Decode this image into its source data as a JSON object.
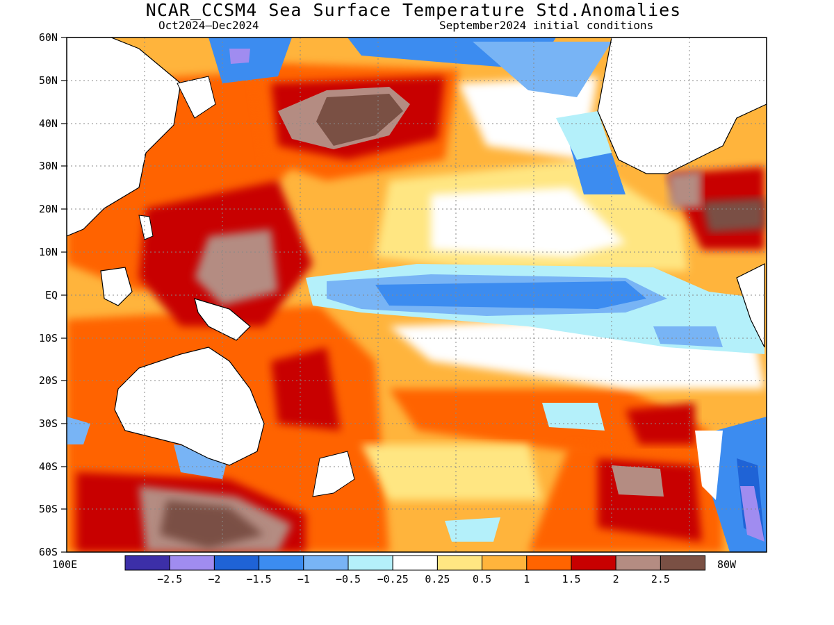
{
  "title": "NCAR_CCSM4 Sea Surface Temperature Std.Anomalies",
  "subtitle_left": "Oct2024–Dec2024",
  "subtitle_right": "September2024 initial conditions",
  "lat_labels": [
    "60N",
    "50N",
    "40N",
    "30N",
    "20N",
    "10N",
    "EQ",
    "10S",
    "20S",
    "30S",
    "40S",
    "50S",
    "60S"
  ],
  "lon_left_label": "100E",
  "lon_right_label": "80W",
  "legend": {
    "colors": [
      "#3c2fa8",
      "#a08cf0",
      "#1f63d6",
      "#3c8cf0",
      "#78b4f5",
      "#b4f0fa",
      "#ffffff",
      "#ffe682",
      "#ffb43c",
      "#ff6400",
      "#c80000",
      "#b48c82",
      "#7a5044"
    ],
    "labels": [
      "−2.5",
      "−2",
      "−1.5",
      "−1",
      "−0.5",
      "−0.25",
      "0.25",
      "0.5",
      "1",
      "1.5",
      "2",
      "2.5"
    ]
  }
}
